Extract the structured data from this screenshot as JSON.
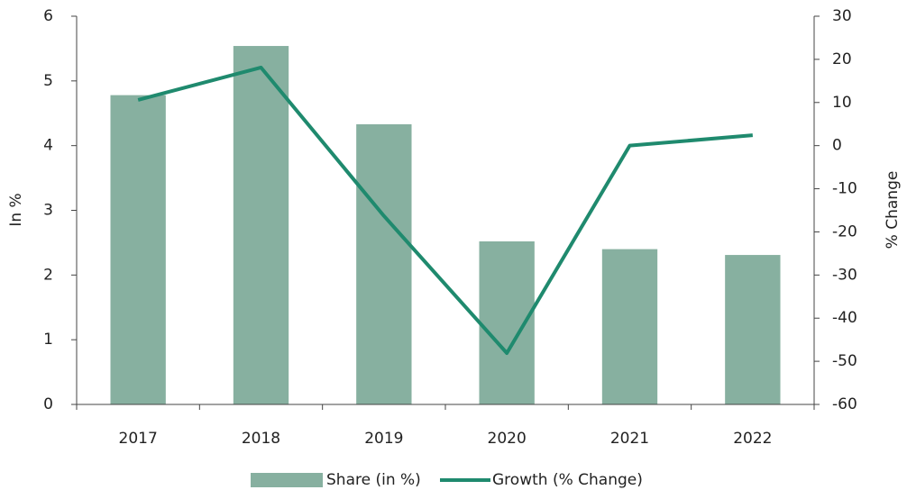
{
  "chart_data": {
    "type": "bar-line",
    "categories": [
      "2017",
      "2018",
      "2019",
      "2020",
      "2021",
      "2022"
    ],
    "series": [
      {
        "name": "Share (in %)",
        "type": "bar",
        "color": "#87b0a0",
        "values": [
          4.78,
          5.54,
          4.33,
          2.52,
          2.4,
          2.31
        ]
      },
      {
        "name": "Growth (% Change)",
        "type": "line",
        "axis": "y2",
        "color": "#1f8a6e",
        "values": [
          10.6,
          18.1,
          -16.3,
          -48.1,
          0,
          2.4
        ]
      }
    ],
    "ylabel": "In %",
    "y2label": "% Change",
    "ylim": [
      0,
      6
    ],
    "yticks": [
      0,
      1,
      2,
      3,
      4,
      5,
      6
    ],
    "y2lim": [
      -60,
      30
    ],
    "y2ticks": [
      -60,
      -50,
      -40,
      -30,
      -20,
      -10,
      0,
      10,
      20,
      30
    ],
    "legend": "bottom"
  }
}
